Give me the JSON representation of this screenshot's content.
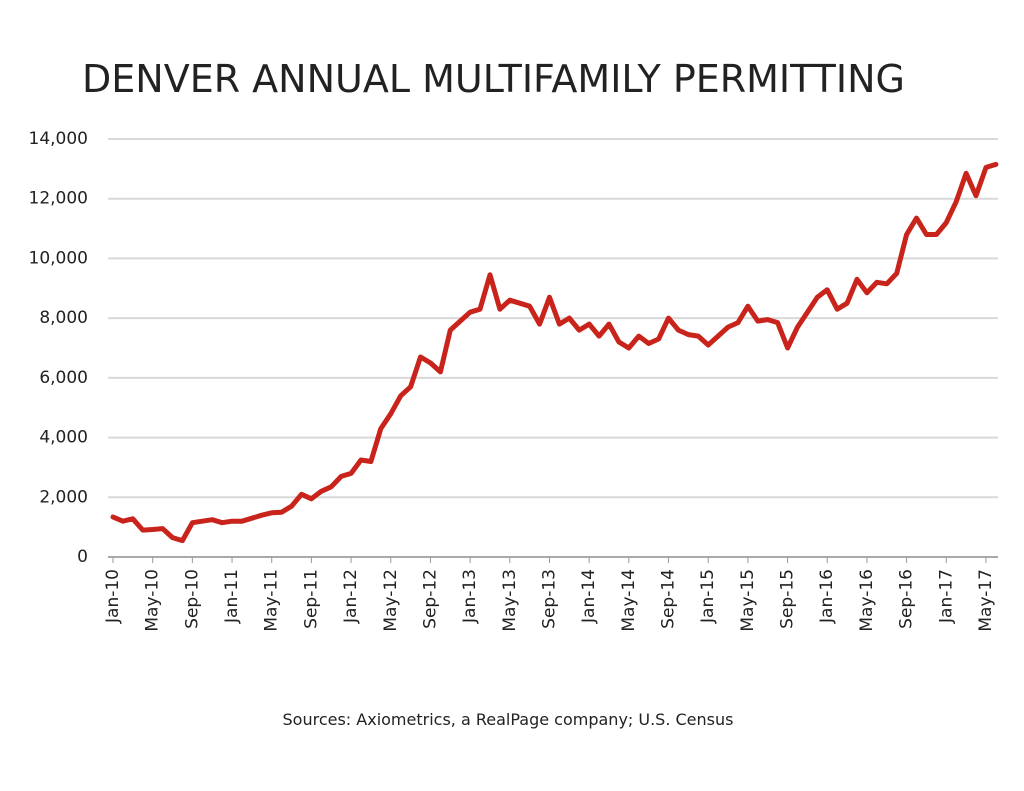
{
  "chart_data": {
    "type": "line",
    "title": "DENVER ANNUAL MULTIFAMILY PERMITTING",
    "source": "Sources: Axiometrics, a RealPage company; U.S. Census",
    "categories": [
      "Jan-10",
      null,
      null,
      null,
      "May-10",
      null,
      null,
      null,
      "Sep-10",
      null,
      null,
      null,
      "Jan-11",
      null,
      null,
      null,
      "May-11",
      null,
      null,
      null,
      "Sep-11",
      null,
      null,
      null,
      "Jan-12",
      null,
      null,
      null,
      "May-12",
      null,
      null,
      null,
      "Sep-12",
      null,
      null,
      null,
      "Jan-13",
      null,
      null,
      null,
      "May-13",
      null,
      null,
      null,
      "Sep-13",
      null,
      null,
      null,
      "Jan-14",
      null,
      null,
      null,
      "May-14",
      null,
      null,
      null,
      "Sep-14",
      null,
      null,
      null,
      "Jan-15",
      null,
      null,
      null,
      "May-15",
      null,
      null,
      null,
      "Sep-15",
      null,
      null,
      null,
      "Jan-16",
      null,
      null,
      null,
      "May-16",
      null,
      null,
      null,
      "Sep-16",
      null,
      null,
      null,
      "Jan-17",
      null,
      null,
      null,
      "May-17",
      null
    ],
    "values": [
      1340,
      1200,
      1280,
      900,
      920,
      950,
      650,
      550,
      1150,
      1200,
      1250,
      1150,
      1200,
      1200,
      1300,
      1400,
      1480,
      1500,
      1700,
      2100,
      1950,
      2200,
      2350,
      2700,
      2800,
      3250,
      3200,
      4300,
      4800,
      5400,
      5700,
      6700,
      6500,
      6200,
      7600,
      7900,
      8200,
      8300,
      9450,
      8300,
      8600,
      8500,
      8400,
      7800,
      8700,
      7800,
      8000,
      7600,
      7800,
      7400,
      7800,
      7200,
      7000,
      7400,
      7150,
      7300,
      8000,
      7600,
      7450,
      7400,
      7100,
      7400,
      7700,
      7850,
      8400,
      7900,
      7950,
      7850,
      7000,
      7700,
      8200,
      8700,
      8950,
      8300,
      8500,
      9300,
      8850,
      9200,
      9150,
      9500,
      10800,
      11350,
      10800,
      10800,
      11200,
      11900,
      12850,
      12100,
      13050,
      13150
    ],
    "color": "#c9241b",
    "ylim": [
      0,
      14000
    ],
    "yticks": [
      0,
      {
        "value": 2000,
        "label": "2,000"
      },
      {
        "value": 4000,
        "label": "4,000"
      },
      {
        "value": 6000,
        "label": "6,000"
      },
      {
        "value": 8000,
        "label": "8,000"
      },
      {
        "value": 10000,
        "label": "10,000"
      },
      {
        "value": 12000,
        "label": "12,000"
      },
      {
        "value": 14000,
        "label": "14,000"
      }
    ],
    "grid": true
  }
}
